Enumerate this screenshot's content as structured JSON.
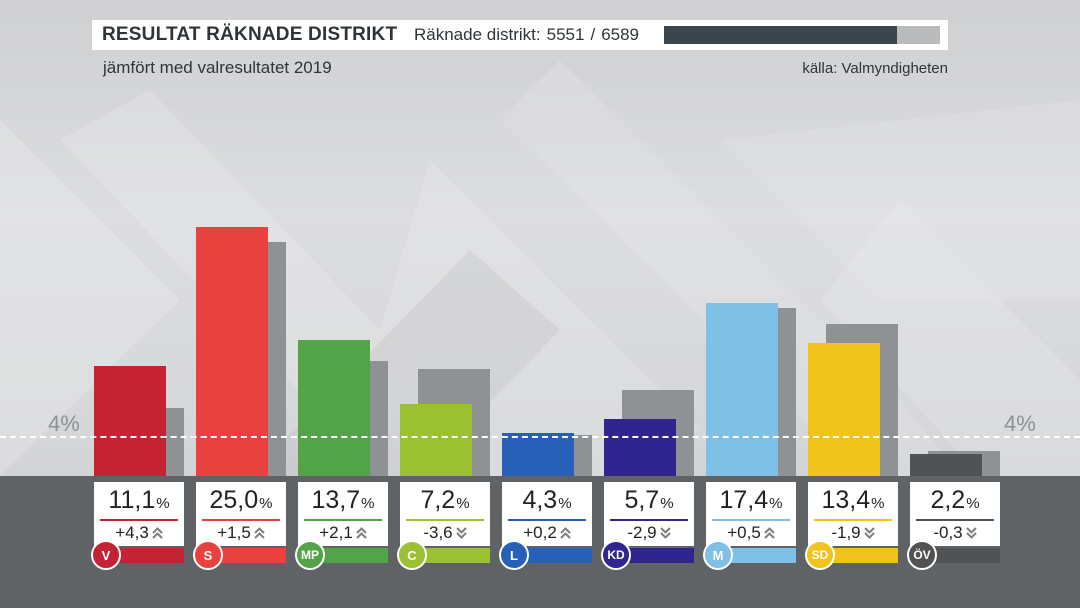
{
  "header": {
    "title": "RESULTAT RÄKNADE DISTRIKT",
    "progress_label": "Räknade distrikt:",
    "progress_counted": "5551",
    "progress_sep": "/",
    "progress_total": "6589",
    "progress_fraction": 0.8425
  },
  "subtitle": "jämfört med valresultatet 2019",
  "source": "källa: Valmyndigheten",
  "threshold_label_left": "4%",
  "threshold_label_right": "4%",
  "colors": {
    "V": "#c42334",
    "S": "#e94040",
    "MP": "#53a349",
    "C": "#9bc032",
    "L": "#2660b8",
    "KD": "#30258e",
    "M": "#7ec0e6",
    "SD": "#f0c41c",
    "ÖV": "#505254",
    "previous": "#8f9294"
  },
  "chart_data": {
    "type": "bar",
    "categories": [
      "V",
      "S",
      "MP",
      "C",
      "L",
      "KD",
      "M",
      "SD",
      "ÖV"
    ],
    "series": [
      {
        "values": [
          11.1,
          25.0,
          13.7,
          7.2,
          4.3,
          5.7,
          17.4,
          13.4,
          2.2
        ]
      },
      {
        "values": [
          6.8,
          23.5,
          11.6,
          10.8,
          4.1,
          8.6,
          16.9,
          15.3,
          2.5
        ]
      }
    ],
    "value_labels": [
      "11,1",
      "25,0",
      "13,7",
      "7,2",
      "4,3",
      "5,7",
      "17,4",
      "13,4",
      "2,2"
    ],
    "change_labels": [
      "+4,3",
      "+1,5",
      "+2,1",
      "-3,6",
      "+0,2",
      "-2,9",
      "+0,5",
      "-1,9",
      "-0,3"
    ],
    "change_direction": [
      "up",
      "up",
      "up",
      "down",
      "up",
      "down",
      "up",
      "down",
      "down"
    ],
    "percent_sign": "%",
    "threshold": 4,
    "ylim": [
      0,
      27
    ]
  }
}
